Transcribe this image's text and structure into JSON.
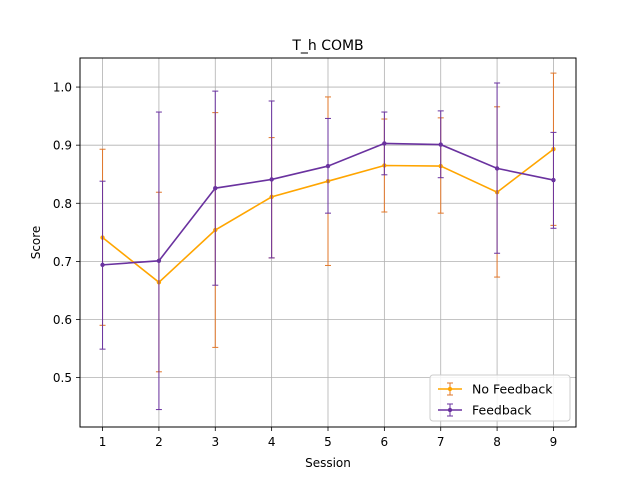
{
  "chart_data": {
    "type": "line",
    "title": "T_h COMB",
    "xlabel": "Session",
    "ylabel": "Score",
    "x": [
      1,
      2,
      3,
      4,
      5,
      6,
      7,
      8,
      9
    ],
    "xlim": [
      0.6,
      9.4
    ],
    "ylim": [
      0.415,
      1.05
    ],
    "yticks": [
      0.5,
      0.6,
      0.7,
      0.8,
      0.9,
      1.0
    ],
    "ytick_labels": [
      "0.5",
      "0.6",
      "0.7",
      "0.8",
      "0.9",
      "1.0"
    ],
    "xtick_labels": [
      "1",
      "2",
      "3",
      "4",
      "5",
      "6",
      "7",
      "8",
      "9"
    ],
    "grid": true,
    "legend_position": "lower right",
    "series": [
      {
        "name": "No Feedback",
        "color": "#ffa500",
        "errcolor": "#e1772a",
        "values": [
          0.741,
          0.664,
          0.754,
          0.811,
          0.838,
          0.865,
          0.864,
          0.819,
          0.893
        ],
        "err_low": [
          0.59,
          0.51,
          0.552,
          0.706,
          0.693,
          0.785,
          0.783,
          0.673,
          0.762
        ],
        "err_high": [
          0.893,
          0.819,
          0.956,
          0.913,
          0.983,
          0.945,
          0.947,
          0.966,
          1.024
        ]
      },
      {
        "name": "Feedback",
        "color": "#6a329f",
        "errcolor": "#6a329f",
        "values": [
          0.694,
          0.701,
          0.826,
          0.841,
          0.864,
          0.903,
          0.901,
          0.86,
          0.84
        ],
        "err_low": [
          0.549,
          0.445,
          0.659,
          0.706,
          0.783,
          0.849,
          0.844,
          0.714,
          0.757
        ],
        "err_high": [
          0.838,
          0.957,
          0.993,
          0.976,
          0.946,
          0.957,
          0.959,
          1.007,
          0.922
        ]
      }
    ]
  }
}
